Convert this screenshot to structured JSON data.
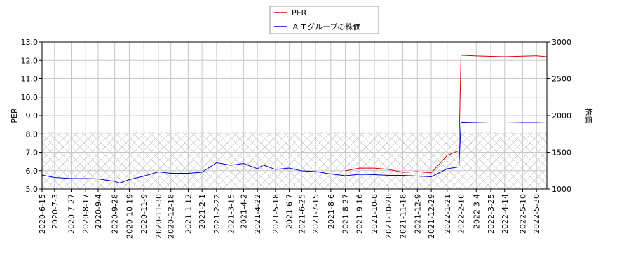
{
  "chart_data": {
    "type": "line",
    "x": [
      "2020-6-15",
      "2020-7-3",
      "2020-7-27",
      "2020-8-17",
      "2020-9-4",
      "2020-9-28",
      "2020-10-5",
      "2020-10-19",
      "2020-11-9",
      "2020-11-30",
      "2020-12-18",
      "2021-1-12",
      "2021-2-1",
      "2021-2-22",
      "2021-3-15",
      "2021-4-2",
      "2021-4-22",
      "2021-4-30",
      "2021-5-18",
      "2021-6-7",
      "2021-6-25",
      "2021-7-15",
      "2021-8-6",
      "2021-8-27",
      "2021-9-16",
      "2021-10-8",
      "2021-10-28",
      "2021-11-18",
      "2021-12-9",
      "2021-12-29",
      "2022-1-21",
      "2022-2-7",
      "2022-2-10",
      "2022-3-4",
      "2022-3-25",
      "2022-4-14",
      "2022-5-10",
      "2022-5-30",
      "2022-6-14"
    ],
    "series": [
      {
        "name": "PER",
        "color": "#dd0000",
        "values": [
          null,
          null,
          null,
          null,
          null,
          null,
          null,
          null,
          null,
          null,
          null,
          null,
          null,
          null,
          null,
          null,
          null,
          null,
          null,
          null,
          null,
          null,
          null,
          5.99,
          6.14,
          6.14,
          6.07,
          5.91,
          5.95,
          5.88,
          6.83,
          7.1,
          12.28,
          12.24,
          12.22,
          12.2,
          12.23,
          12.25,
          12.2
        ]
      },
      {
        "name": "ＡＴグループの株価",
        "color": "#0000cc",
        "axis": "y2",
        "values": [
          1190,
          1157,
          1143,
          1143,
          1138,
          1105,
          1081,
          1129,
          1176,
          1233,
          1214,
          1214,
          1229,
          1357,
          1324,
          1348,
          1276,
          1329,
          1267,
          1286,
          1248,
          1238,
          1205,
          1181,
          1200,
          1195,
          1186,
          1186,
          1176,
          1167,
          1276,
          1300,
          1910,
          1905,
          1900,
          1900,
          1905,
          1905,
          1900
        ]
      }
    ],
    "xlim": [
      "2020-6-15",
      "2022-6-14"
    ],
    "xticks": [
      "2020-6-15",
      "2020-7-3",
      "2020-7-27",
      "2020-8-17",
      "2020-9-4",
      "2020-9-28",
      "2020-10-19",
      "2020-11-9",
      "2020-11-30",
      "2020-12-18",
      "2021-1-12",
      "2021-2-1",
      "2021-2-22",
      "2021-3-15",
      "2021-4-2",
      "2021-4-22",
      "2021-5-18",
      "2021-6-7",
      "2021-6-25",
      "2021-7-15",
      "2021-8-6",
      "2021-8-27",
      "2021-9-16",
      "2021-10-8",
      "2021-10-28",
      "2021-11-18",
      "2021-12-9",
      "2021-12-29",
      "2022-1-21",
      "2022-2-10",
      "2022-3-4",
      "2022-3-25",
      "2022-4-14",
      "2022-5-10",
      "2022-5-30"
    ],
    "ylim": [
      5,
      13
    ],
    "yticks": [
      {
        "value": 5,
        "label": "5.0"
      },
      {
        "value": 6,
        "label": "6.0"
      },
      {
        "value": 7,
        "label": "7.0"
      },
      {
        "value": 8,
        "label": "8.0"
      },
      {
        "value": 9,
        "label": "9.0"
      },
      {
        "value": 10,
        "label": "10.0"
      },
      {
        "value": 11,
        "label": "11.0"
      },
      {
        "value": 12,
        "label": "12.0"
      },
      {
        "value": 13,
        "label": "13.0"
      }
    ],
    "y2lim": [
      1000,
      3000
    ],
    "y2ticks": [
      1000,
      1500,
      2000,
      2500,
      3000
    ],
    "ylabel": "PER",
    "y2label": "株価",
    "grid": true,
    "legend": "top"
  }
}
